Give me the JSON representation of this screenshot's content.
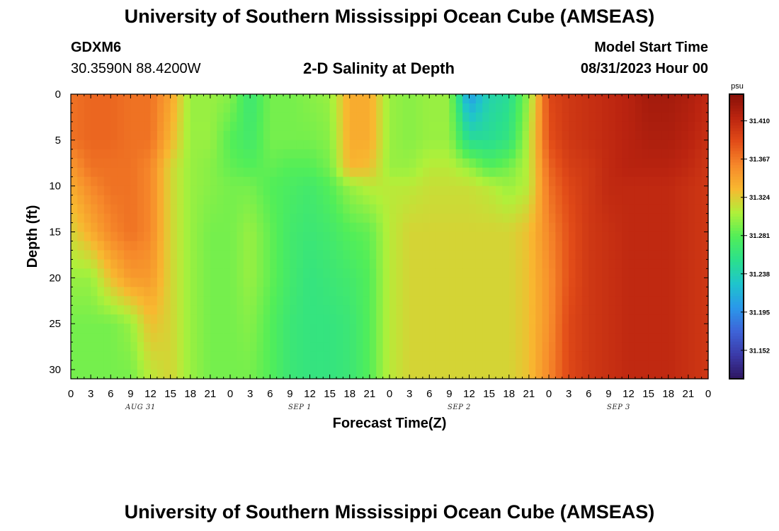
{
  "header": {
    "title": "University of Southern Mississippi Ocean Cube (AMSEAS)",
    "station_id": "GDXM6",
    "coords": "30.3590N  88.4200W",
    "plot_title": "2-D Salinity at Depth",
    "start_label": "Model Start Time",
    "start_value": "08/31/2023 Hour 00"
  },
  "footer": {
    "title": "University of Southern Mississippi Ocean Cube (AMSEAS)"
  },
  "chart_data": {
    "type": "heatmap",
    "title": "2-D Salinity at Depth",
    "xlabel": "Forecast Time(Z)",
    "ylabel": "Depth (ft)",
    "x_tick_labels": [
      "0",
      "3",
      "6",
      "9",
      "12",
      "15",
      "18",
      "21",
      "0",
      "3",
      "6",
      "9",
      "12",
      "15",
      "18",
      "21",
      "0",
      "3",
      "6",
      "9",
      "12",
      "15",
      "18",
      "21",
      "0",
      "3",
      "6",
      "9",
      "12",
      "15",
      "18",
      "21",
      "0"
    ],
    "day_labels": [
      "AUG 31",
      "SEP 1",
      "SEP 2",
      "SEP 3"
    ],
    "x_range_hours": [
      0,
      96
    ],
    "y_ticks": [
      0,
      5,
      10,
      15,
      20,
      25,
      30
    ],
    "y_range_ft": [
      0,
      31
    ],
    "colorbar": {
      "unit": "psu",
      "ticks": [
        "31.410",
        "31.367",
        "31.324",
        "31.281",
        "31.238",
        "31.195",
        "31.152"
      ],
      "tick_values": [
        31.41,
        31.367,
        31.324,
        31.281,
        31.238,
        31.195,
        31.152
      ],
      "range": [
        31.12,
        31.44
      ],
      "colors": [
        "#2e1660",
        "#3b3aa8",
        "#3e64d8",
        "#2a98ea",
        "#1fc4cc",
        "#2be08c",
        "#52ee58",
        "#b0f03a",
        "#f8b830",
        "#f6882a",
        "#e24c18",
        "#bb2410",
        "#861008"
      ]
    },
    "salinity_rows": [
      {
        "depth": 0,
        "values": [
          31.37,
          31.375,
          31.375,
          31.37,
          31.37,
          31.345,
          31.3,
          31.3,
          31.295,
          31.265,
          31.29,
          31.29,
          31.295,
          31.3,
          31.34,
          31.34,
          31.3,
          31.295,
          31.3,
          31.3,
          31.2,
          31.24,
          31.25,
          31.3,
          31.39,
          31.4,
          31.405,
          31.41,
          31.415,
          31.425,
          31.425,
          31.42,
          31.41
        ]
      },
      {
        "depth": 5,
        "values": [
          31.37,
          31.375,
          31.375,
          31.37,
          31.37,
          31.335,
          31.3,
          31.3,
          31.28,
          31.27,
          31.29,
          31.29,
          31.29,
          31.295,
          31.34,
          31.34,
          31.3,
          31.295,
          31.3,
          31.3,
          31.25,
          31.25,
          31.26,
          31.31,
          31.385,
          31.4,
          31.405,
          31.41,
          31.415,
          31.42,
          31.42,
          31.415,
          31.405
        ]
      },
      {
        "depth": 8,
        "values": [
          31.35,
          31.37,
          31.37,
          31.37,
          31.36,
          31.32,
          31.3,
          31.295,
          31.285,
          31.28,
          31.285,
          31.28,
          31.28,
          31.29,
          31.335,
          31.33,
          31.3,
          31.3,
          31.31,
          31.31,
          31.3,
          31.28,
          31.29,
          31.31,
          31.375,
          31.395,
          31.4,
          31.41,
          31.415,
          31.415,
          31.415,
          31.41,
          31.4
        ]
      },
      {
        "depth": 10,
        "values": [
          31.34,
          31.36,
          31.37,
          31.37,
          31.36,
          31.32,
          31.3,
          31.295,
          31.29,
          31.29,
          31.28,
          31.275,
          31.27,
          31.28,
          31.3,
          31.31,
          31.31,
          31.31,
          31.315,
          31.315,
          31.315,
          31.31,
          31.3,
          31.31,
          31.37,
          31.39,
          31.4,
          31.41,
          31.41,
          31.41,
          31.41,
          31.405,
          31.4
        ]
      },
      {
        "depth": 15,
        "values": [
          31.32,
          31.34,
          31.36,
          31.37,
          31.36,
          31.32,
          31.3,
          31.29,
          31.29,
          31.3,
          31.285,
          31.27,
          31.265,
          31.27,
          31.28,
          31.285,
          31.31,
          31.32,
          31.32,
          31.32,
          31.32,
          31.32,
          31.32,
          31.33,
          31.36,
          31.385,
          31.4,
          31.405,
          31.41,
          31.41,
          31.41,
          31.405,
          31.4
        ]
      },
      {
        "depth": 20,
        "values": [
          31.3,
          31.3,
          31.33,
          31.35,
          31.35,
          31.32,
          31.3,
          31.29,
          31.29,
          31.3,
          31.285,
          31.27,
          31.26,
          31.265,
          31.27,
          31.28,
          31.31,
          31.32,
          31.32,
          31.32,
          31.32,
          31.32,
          31.32,
          31.33,
          31.355,
          31.385,
          31.4,
          31.405,
          31.41,
          31.41,
          31.41,
          31.405,
          31.4
        ]
      },
      {
        "depth": 25,
        "values": [
          31.29,
          31.29,
          31.29,
          31.3,
          31.33,
          31.32,
          31.3,
          31.29,
          31.29,
          31.295,
          31.28,
          31.265,
          31.26,
          31.26,
          31.265,
          31.28,
          31.31,
          31.32,
          31.32,
          31.32,
          31.32,
          31.32,
          31.32,
          31.33,
          31.355,
          31.39,
          31.4,
          31.405,
          31.41,
          31.41,
          31.41,
          31.405,
          31.4
        ]
      },
      {
        "depth": 31,
        "values": [
          31.29,
          31.29,
          31.29,
          31.29,
          31.31,
          31.32,
          31.3,
          31.29,
          31.29,
          31.29,
          31.28,
          31.265,
          31.26,
          31.26,
          31.265,
          31.28,
          31.31,
          31.32,
          31.32,
          31.32,
          31.32,
          31.32,
          31.32,
          31.33,
          31.36,
          31.39,
          31.4,
          31.405,
          31.41,
          31.41,
          31.41,
          31.405,
          31.4
        ]
      }
    ]
  }
}
